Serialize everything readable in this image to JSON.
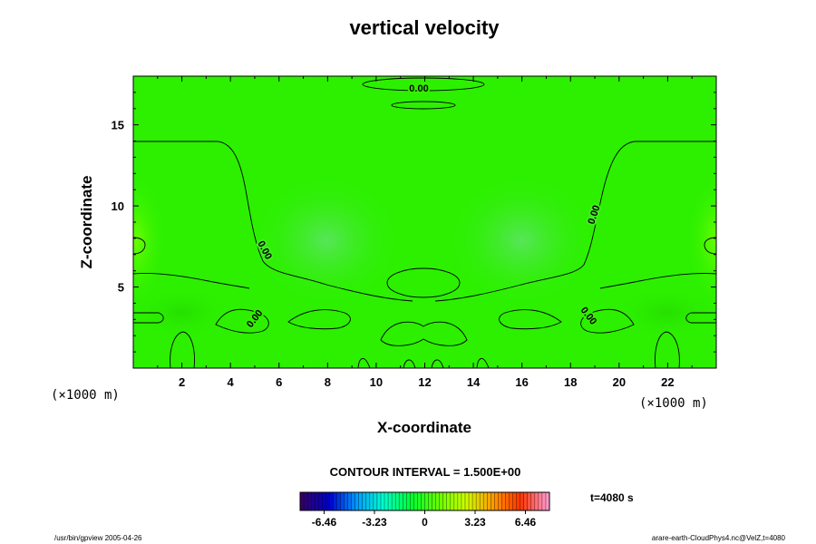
{
  "chart_data": {
    "type": "heatmap",
    "title": "vertical velocity",
    "xlabel": "X-coordinate",
    "ylabel": "Z-coordinate",
    "x_unit": "(×1000 m)",
    "y_unit": "(×1000 m)",
    "xlim": [
      0,
      24
    ],
    "ylim": [
      0,
      18
    ],
    "x_ticks": [
      2,
      4,
      6,
      8,
      10,
      12,
      14,
      16,
      18,
      20,
      22
    ],
    "y_ticks": [
      5,
      10,
      15
    ],
    "contour_label": "0.00",
    "contour_interval_text": "CONTOUR INTERVAL = 1.500E+00",
    "time_text": "t=4080 s",
    "colorbar": {
      "range": [
        -8.0,
        8.0
      ],
      "tick_values": [
        -6.46,
        -3.23,
        0,
        3.23,
        6.46
      ],
      "tick_labels": [
        "-6.46",
        "-3.23",
        "0",
        "3.23",
        "6.46"
      ],
      "colors": [
        "#330066",
        "#0000cc",
        "#0099ff",
        "#00ffcc",
        "#00ff33",
        "#66ff00",
        "#ccff00",
        "#ff9900",
        "#ff3300",
        "#ff99cc"
      ]
    },
    "field_colors": {
      "background": "#2cf000",
      "lighter_regions": "#5ae74a",
      "edge_regions": "#6bf200"
    },
    "footer_left": "/usr/bin/gpview 2005-04-26",
    "footer_right": "arare-earth-CloudPhys4.nc@VelZ,t=4080"
  }
}
